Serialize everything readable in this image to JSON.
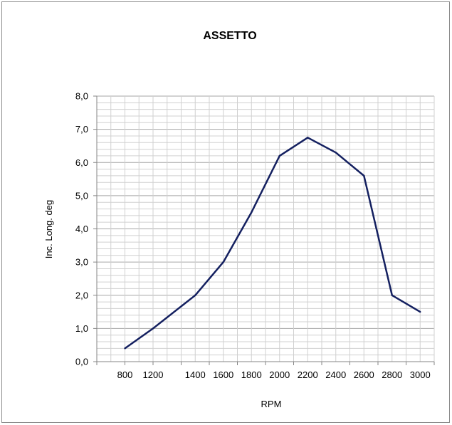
{
  "chart_data": {
    "type": "line",
    "title": "ASSETTO",
    "xlabel": "RPM",
    "ylabel": "Inc. Long. deg",
    "categories": [
      "800",
      "1200",
      "1400",
      "1600",
      "1800",
      "2000",
      "2200",
      "2400",
      "2600",
      "2800",
      "3000"
    ],
    "ylim": [
      0,
      8
    ],
    "yticks": [
      "0,0",
      "1,0",
      "2,0",
      "3,0",
      "4,0",
      "5,0",
      "6,0",
      "7,0",
      "8,0"
    ],
    "series": [
      {
        "x": [
          1000,
          1200,
          1500,
          1700,
          1900,
          2100,
          2300,
          2500,
          2700,
          2900,
          3100
        ],
        "values": [
          0.4,
          1.0,
          2.0,
          3.0,
          4.5,
          6.2,
          6.75,
          6.3,
          5.6,
          2.0,
          1.5
        ],
        "color": "#142060"
      }
    ],
    "grid": true,
    "legend": "none"
  }
}
